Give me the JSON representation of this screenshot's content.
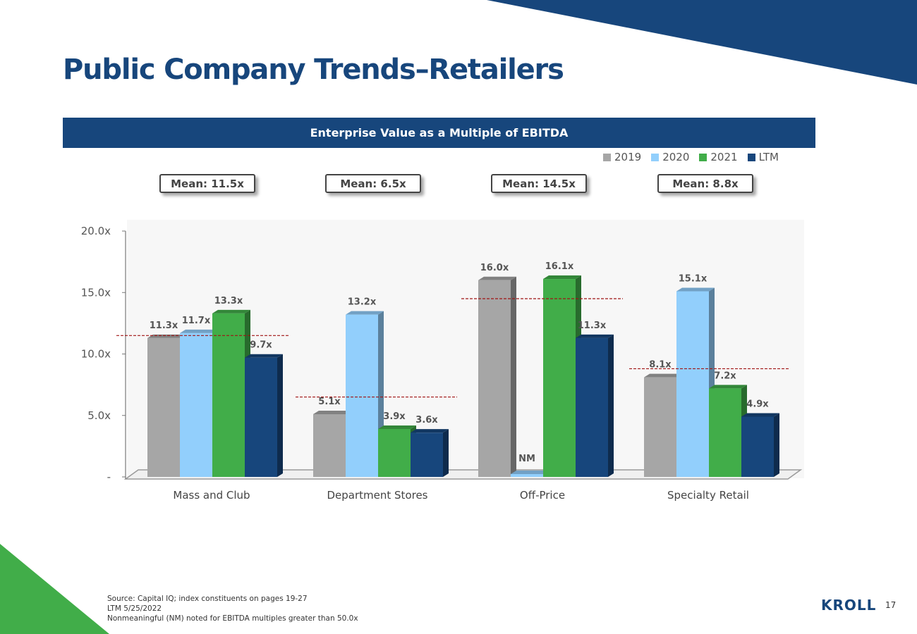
{
  "slide": {
    "title": "Public Company Trends–Retailers",
    "banner": "Enterprise Value as a Multiple of EBITDA",
    "page_number": "17",
    "logo_text": "KROLL",
    "footnotes": [
      "Source: Capital IQ; index constituents on pages 19-27",
      "LTM 5/25/2022",
      "Nonmeaningful (NM) noted for EBITDA multiples greater than 50.0x"
    ],
    "colors": {
      "brand_blue": "#17467c",
      "brand_green": "#41ad49"
    }
  },
  "chart_data": {
    "type": "bar",
    "title": "Enterprise Value as a Multiple of EBITDA",
    "categories": [
      "Mass and Club",
      "Department Stores",
      "Off-Price",
      "Specialty Retail"
    ],
    "series": [
      {
        "name": "2019",
        "color": "#a6a6a6",
        "values": [
          11.3,
          5.1,
          16.0,
          8.1
        ],
        "labels": [
          "11.3x",
          "5.1x",
          "16.0x",
          "8.1x"
        ]
      },
      {
        "name": "2020",
        "color": "#92cffc",
        "values": [
          11.7,
          13.2,
          null,
          15.1
        ],
        "labels": [
          "11.7x",
          "13.2x",
          "NM",
          "15.1x"
        ]
      },
      {
        "name": "2021",
        "color": "#41ad49",
        "values": [
          13.3,
          3.9,
          16.1,
          7.2
        ],
        "labels": [
          "13.3x",
          "3.9x",
          "16.1x",
          "7.2x"
        ]
      },
      {
        "name": "LTM",
        "color": "#17467c",
        "values": [
          9.7,
          3.6,
          11.3,
          4.9
        ],
        "labels": [
          "9.7x",
          "3.6x",
          "11.3x",
          "4.9x"
        ]
      }
    ],
    "means": [
      11.5,
      6.5,
      14.5,
      8.8
    ],
    "mean_labels": [
      "Mean: 11.5x",
      "Mean: 6.5x",
      "Mean: 14.5x",
      "Mean: 8.8x"
    ],
    "ylim": [
      0,
      20
    ],
    "yticks": [
      0,
      5,
      10,
      15,
      20
    ],
    "ytick_labels": [
      "-",
      "5.0x",
      "10.0x",
      "15.0x",
      "20.0x"
    ],
    "xlabel": "",
    "ylabel": "",
    "legend_position": "top-right"
  }
}
